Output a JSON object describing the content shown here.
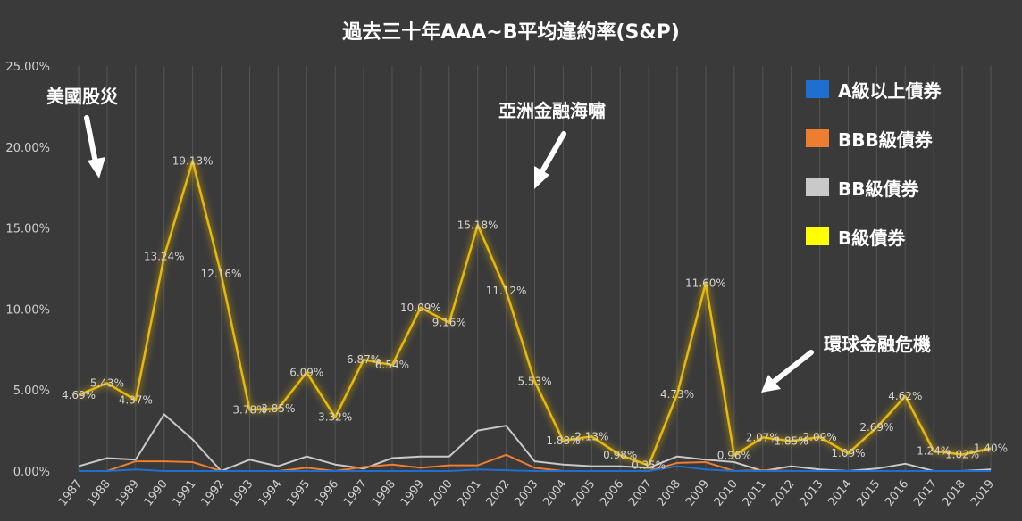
{
  "title": "過去三十年AAA~B平均違約率(S&P)",
  "annotations": {
    "crash_1987": "美國股災",
    "asia_crisis": "亞洲金融海嘯",
    "gfc": "環球金融危機"
  },
  "chart_data": {
    "type": "line",
    "title": "過去三十年AAA~B平均違約率(S&P)",
    "categories": [
      "1987",
      "1988",
      "1989",
      "1990",
      "1991",
      "1992",
      "1993",
      "1994",
      "1995",
      "1996",
      "1997",
      "1998",
      "1999",
      "2000",
      "2001",
      "2002",
      "2003",
      "2004",
      "2005",
      "2006",
      "2007",
      "2008",
      "2009",
      "2010",
      "2011",
      "2012",
      "2013",
      "2014",
      "2015",
      "2016",
      "2017",
      "2018",
      "2019"
    ],
    "ylim": [
      0,
      25
    ],
    "yticks": [
      "0.00%",
      "5.00%",
      "10.00%",
      "15.00%",
      "20.00%",
      "25.00%"
    ],
    "grid": "vertical",
    "legend_position": "top-right",
    "series": [
      {
        "name": "A級以上債券",
        "color": "#1f6fd1",
        "values": [
          0.0,
          0.0,
          0.1,
          0.0,
          0.0,
          0.0,
          0.0,
          0.0,
          0.0,
          0.0,
          0.0,
          0.0,
          0.0,
          0.0,
          0.1,
          0.05,
          0.0,
          0.0,
          0.0,
          0.0,
          0.0,
          0.3,
          0.1,
          0.0,
          0.0,
          0.0,
          0.0,
          0.0,
          0.0,
          0.0,
          0.0,
          0.0,
          0.0
        ]
      },
      {
        "name": "BBB級債券",
        "color": "#ed7d31",
        "values": [
          0.0,
          0.0,
          0.6,
          0.6,
          0.55,
          0.0,
          0.0,
          0.0,
          0.2,
          0.0,
          0.25,
          0.4,
          0.2,
          0.35,
          0.35,
          1.0,
          0.2,
          0.0,
          0.0,
          0.0,
          0.0,
          0.5,
          0.55,
          0.0,
          0.05,
          0.0,
          0.0,
          0.0,
          0.0,
          0.0,
          0.0,
          0.0,
          0.0
        ]
      },
      {
        "name": "BB級債券",
        "color": "#c9c9c9",
        "values": [
          0.3,
          0.8,
          0.7,
          3.5,
          1.95,
          0.0,
          0.7,
          0.3,
          0.9,
          0.4,
          0.15,
          0.8,
          0.9,
          0.9,
          2.5,
          2.8,
          0.6,
          0.4,
          0.3,
          0.3,
          0.2,
          0.9,
          0.7,
          0.55,
          0.0,
          0.3,
          0.1,
          0.0,
          0.15,
          0.45,
          0.0,
          0.0,
          0.1
        ]
      },
      {
        "name": "B級債券",
        "color": "#ffff00",
        "line_color": "#e8b80a",
        "values": [
          4.69,
          5.43,
          4.37,
          13.24,
          19.13,
          12.16,
          3.78,
          3.85,
          6.09,
          3.32,
          6.87,
          6.54,
          10.09,
          9.16,
          15.18,
          11.12,
          5.53,
          1.88,
          2.13,
          0.98,
          0.35,
          4.73,
          11.6,
          0.96,
          2.07,
          1.85,
          2.09,
          1.09,
          2.69,
          4.62,
          1.24,
          1.02,
          1.4
        ],
        "labels": [
          "4.69%",
          "5.43%",
          "4.37%",
          "13.24%",
          "19.13%",
          "12.16%",
          "3.78%",
          "3.85%",
          "6.09%",
          "3.32%",
          "6.87%",
          "6.54%",
          "10.09%",
          "9.16%",
          "15.18%",
          "11.12%",
          "5.53%",
          "1.88%",
          "2.13%",
          "0.98%",
          "0.35%",
          "4.73%",
          "11.60%",
          "0.96%",
          "2.07%",
          "1.85%",
          "2.09%",
          "1.09%",
          "2.69%",
          "4.62%",
          "1.24%",
          "1.02%",
          "1.40%"
        ]
      }
    ]
  }
}
